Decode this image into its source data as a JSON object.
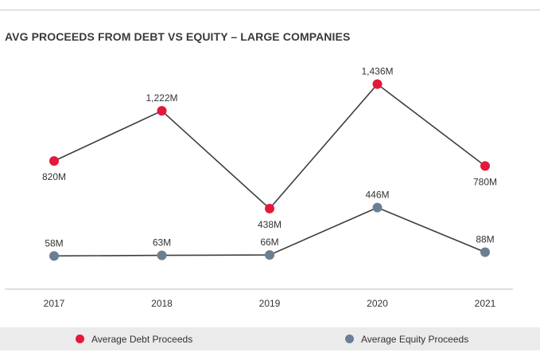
{
  "chart_data": {
    "type": "line",
    "title": "AVG PROCEEDS FROM DEBT VS EQUITY – LARGE COMPANIES",
    "categories": [
      "2017",
      "2018",
      "2019",
      "2020",
      "2021"
    ],
    "series": [
      {
        "name": "Average Debt Proceeds",
        "color": "#e4183c",
        "values": [
          820,
          1222,
          438,
          1436,
          780
        ],
        "labels": [
          "820M",
          "1,222M",
          "438M",
          "1,436M",
          "780M"
        ],
        "label_positions": [
          "below",
          "above",
          "below",
          "above",
          "below"
        ]
      },
      {
        "name": "Average Equity Proceeds",
        "color": "#6b7f93",
        "values": [
          58,
          63,
          66,
          446,
          88
        ],
        "labels": [
          "58M",
          "63M",
          "66M",
          "446M",
          "88M"
        ],
        "label_positions": [
          "above",
          "above",
          "above",
          "above",
          "above"
        ]
      }
    ],
    "line_color": "#3d3d3d",
    "ylim": [
      -10,
      1600
    ],
    "grid": false,
    "legend_position": "bottom"
  }
}
